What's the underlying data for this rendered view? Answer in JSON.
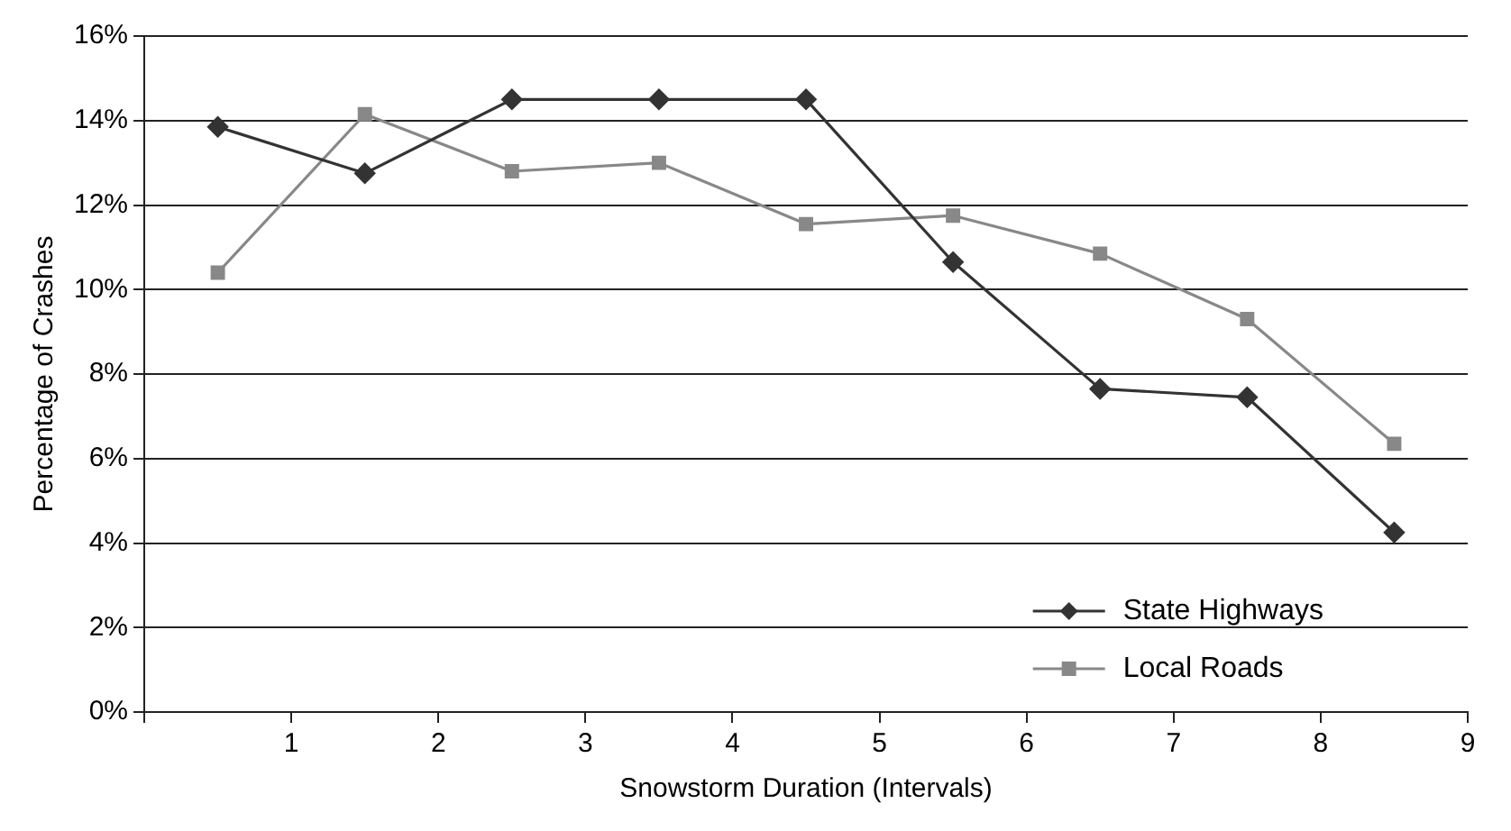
{
  "chart_data": {
    "type": "line",
    "xlabel": "Snowstorm Duration (Intervals)",
    "ylabel": "Percentage of Crashes",
    "xlim": [
      0,
      9
    ],
    "xticks": [
      {
        "value": 0,
        "label": null
      },
      1,
      2,
      3,
      4,
      5,
      6,
      7,
      8,
      9
    ],
    "ylim": [
      0,
      16
    ],
    "yticks": [
      {
        "value": 0,
        "label": "0%"
      },
      {
        "value": 2,
        "label": "2%"
      },
      {
        "value": 4,
        "label": "4%"
      },
      {
        "value": 6,
        "label": "6%"
      },
      {
        "value": 8,
        "label": "8%"
      },
      {
        "value": 10,
        "label": "10%"
      },
      {
        "value": 12,
        "label": "12%"
      },
      {
        "value": 14,
        "label": "14%"
      },
      {
        "value": 16,
        "label": "16%"
      }
    ],
    "grid": "y",
    "legend": "bottom right",
    "line_style": "solid",
    "x": [
      0.5,
      1.5,
      2.5,
      3.5,
      4.5,
      5.5,
      6.5,
      7.5,
      8.5
    ],
    "series": [
      {
        "name": "State Highways",
        "color": "#333333",
        "marker": "diamond",
        "values": [
          13.85,
          12.75,
          14.5,
          14.5,
          14.5,
          10.65,
          7.65,
          7.45,
          4.25
        ]
      },
      {
        "name": "Local Roads",
        "color": "#888888",
        "marker": "square",
        "values": [
          10.4,
          14.15,
          12.8,
          13.0,
          11.55,
          11.75,
          10.85,
          9.3,
          6.35
        ]
      }
    ]
  }
}
